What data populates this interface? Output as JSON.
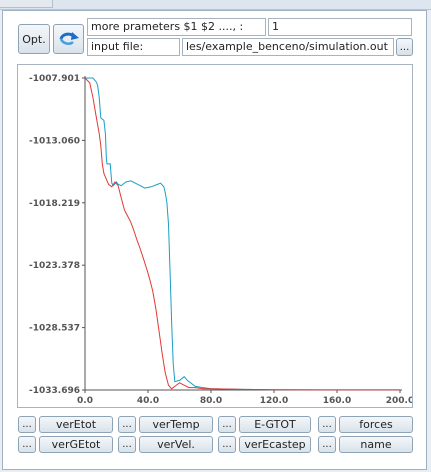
{
  "options_button": "Opt.",
  "refresh_icon": "refresh-arrow-icon",
  "parameters": {
    "label": "more prameters $1 $2 ...., :",
    "value": "1"
  },
  "input_file": {
    "label": "input file:",
    "value": "les/example_benceno/simulation.out",
    "browse": "..."
  },
  "colors": {
    "series_blue": "#1a9ec7",
    "series_red": "#e03a32"
  },
  "chart_data": {
    "type": "line",
    "xlim": [
      0,
      200
    ],
    "ylim": [
      -1033.696,
      -1007.901
    ],
    "x_ticks": [
      "0.0",
      "40.0",
      "80.0",
      "120.0",
      "160.0",
      "200.0"
    ],
    "y_ticks": [
      "-1007.901",
      "-1013.060",
      "-1018.219",
      "-1023.378",
      "-1028.537",
      "-1033.696"
    ],
    "series": [
      {
        "color": "#1a9ec7",
        "x": [
          0,
          5,
          7,
          8,
          9,
          10,
          11,
          12,
          13,
          13.5,
          14,
          16,
          17,
          18,
          20,
          21,
          23,
          26,
          29,
          32,
          35,
          38,
          42,
          46,
          48,
          50,
          51,
          52,
          53,
          54,
          55,
          56,
          57,
          60,
          63,
          65,
          70,
          75,
          80,
          100,
          120,
          150,
          200
        ],
        "y": [
          -1007.9,
          -1007.9,
          -1008.2,
          -1008.5,
          -1009.5,
          -1011.2,
          -1011.3,
          -1011.4,
          -1012.6,
          -1014.5,
          -1015.0,
          -1015.0,
          -1016.6,
          -1016.8,
          -1016.5,
          -1016.7,
          -1016.8,
          -1016.5,
          -1016.4,
          -1016.6,
          -1016.8,
          -1017.0,
          -1016.9,
          -1016.7,
          -1016.6,
          -1016.9,
          -1017.4,
          -1018.2,
          -1020.0,
          -1024.0,
          -1028.0,
          -1031.5,
          -1033.0,
          -1032.9,
          -1032.6,
          -1032.9,
          -1033.4,
          -1033.5,
          -1033.6,
          -1033.65,
          -1033.67,
          -1033.69,
          -1033.69
        ]
      },
      {
        "color": "#e03a32",
        "x": [
          0,
          3,
          5,
          7,
          9,
          10,
          11,
          12,
          13,
          14,
          15,
          17,
          19,
          21,
          23,
          25,
          27,
          29,
          31,
          33,
          35,
          37,
          39,
          41,
          43,
          45,
          47,
          49,
          51,
          53,
          55,
          57,
          60,
          63,
          66,
          70,
          75,
          80,
          100,
          120,
          150,
          200
        ],
        "y": [
          -1007.9,
          -1008.3,
          -1009.5,
          -1011.0,
          -1012.5,
          -1013.5,
          -1015.0,
          -1015.8,
          -1016.1,
          -1016.4,
          -1016.7,
          -1016.9,
          -1016.5,
          -1016.8,
          -1017.8,
          -1018.8,
          -1019.3,
          -1019.8,
          -1020.5,
          -1021.3,
          -1022.0,
          -1022.8,
          -1023.6,
          -1024.5,
          -1025.5,
          -1027.0,
          -1028.8,
          -1030.7,
          -1032.3,
          -1033.3,
          -1033.6,
          -1033.4,
          -1033.1,
          -1033.3,
          -1033.5,
          -1033.5,
          -1033.6,
          -1033.6,
          -1033.65,
          -1033.68,
          -1033.69,
          -1033.69
        ]
      }
    ]
  },
  "buttons_row1": [
    {
      "dots": "...",
      "label": "verEtot"
    },
    {
      "dots": "...",
      "label": "verTemp"
    },
    {
      "dots": "...",
      "label": "E-GTOT"
    },
    {
      "dots": "...",
      "label": "forces"
    }
  ],
  "buttons_row2": [
    {
      "dots": "...",
      "label": "verGEtot"
    },
    {
      "dots": "...",
      "label": "verVel."
    },
    {
      "dots": "...",
      "label": "verEcastep"
    },
    {
      "dots": "...",
      "label": "name"
    }
  ]
}
